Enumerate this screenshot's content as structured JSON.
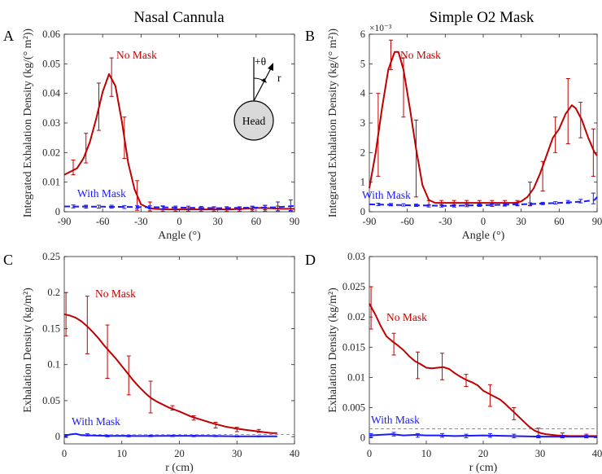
{
  "column_titles": [
    "Nasal Cannula",
    "Simple O2 Mask"
  ],
  "colors": {
    "no_mask": "#c00000",
    "with_mask": "#1a1aff",
    "axis": "#262626",
    "threshold": "#808080",
    "head_fill": "#d9d9d9"
  },
  "chart_data": [
    {
      "panel": "A",
      "type": "line",
      "xlabel": "Angle (°)",
      "ylabel": "Integrated Exhalation Density (kg/(° m²))",
      "xlim": [
        -90,
        90
      ],
      "ylim": [
        0,
        0.06
      ],
      "xticks": [
        -90,
        -60,
        -30,
        0,
        30,
        60,
        90
      ],
      "yticks": [
        0,
        0.01,
        0.02,
        0.03,
        0.04,
        0.05,
        0.06
      ],
      "ytick_labels": [
        "0",
        "0.01",
        "0.02",
        "0.03",
        "0.04",
        "0.05",
        "0.06"
      ],
      "grid": false,
      "inset": {
        "label": "Head",
        "angle_label": "+θ",
        "radius_label": "r"
      },
      "series": [
        {
          "name": "No Mask",
          "style": "solid",
          "x": [
            -90,
            -80,
            -75,
            -70,
            -65,
            -60,
            -55,
            -50,
            -45,
            -40,
            -35,
            -30,
            -25,
            -20,
            -10,
            0,
            10,
            20,
            30,
            40,
            50,
            60,
            70,
            80,
            90
          ],
          "y": [
            0.0125,
            0.0147,
            0.018,
            0.0235,
            0.0315,
            0.0405,
            0.0465,
            0.0425,
            0.0305,
            0.0165,
            0.0075,
            0.0025,
            0.0015,
            0.001,
            0.0008,
            0.0008,
            0.0008,
            0.0008,
            0.0008,
            0.0008,
            0.001,
            0.0013,
            0.0012,
            0.001,
            0.001
          ],
          "err_x": [
            -83,
            -73,
            -63,
            -53,
            -43,
            -33,
            -23,
            -13,
            -3,
            7,
            17,
            27,
            37,
            47,
            57,
            67,
            77,
            87
          ],
          "err_y": [
            0.015,
            0.0215,
            0.0355,
            0.0455,
            0.025,
            0.0055,
            0.0018,
            0.001,
            0.0008,
            0.0008,
            0.0008,
            0.0008,
            0.0008,
            0.0008,
            0.001,
            0.0012,
            0.0011,
            0.001
          ],
          "err_d": [
            0.0025,
            0.005,
            0.008,
            0.0065,
            0.007,
            0.005,
            0.0015,
            0.0008,
            0.0006,
            0.0006,
            0.0006,
            0.0006,
            0.0006,
            0.0006,
            0.0008,
            0.001,
            0.0008,
            0.0008
          ]
        },
        {
          "name": "With Mask",
          "style": "dashed",
          "x": [
            -90,
            -60,
            -30,
            0,
            30,
            60,
            75,
            85,
            90
          ],
          "y": [
            0.0018,
            0.0017,
            0.0016,
            0.0014,
            0.0012,
            0.0014,
            0.0015,
            0.0018,
            0.002
          ],
          "err_x": [
            -83,
            -73,
            -63,
            -53,
            -43,
            -33,
            -23,
            -13,
            -3,
            7,
            17,
            27,
            37,
            47,
            57,
            67,
            77,
            87
          ],
          "err_y": [
            0.0018,
            0.0017,
            0.0017,
            0.0017,
            0.0016,
            0.0016,
            0.0015,
            0.0015,
            0.0014,
            0.0014,
            0.0013,
            0.0012,
            0.0012,
            0.0012,
            0.0013,
            0.0014,
            0.0018,
            0.0022
          ],
          "err_d": [
            0.0005,
            0.0005,
            0.0005,
            0.0005,
            0.0005,
            0.0005,
            0.0005,
            0.0005,
            0.0005,
            0.0005,
            0.0005,
            0.0005,
            0.0005,
            0.0005,
            0.0006,
            0.0007,
            0.0015,
            0.0018
          ]
        }
      ]
    },
    {
      "panel": "B",
      "type": "line",
      "xlabel": "Angle (°)",
      "ylabel": "Integrated Exhalation Density (kg/(° m²))",
      "multiplier": "×10⁻³",
      "xlim": [
        -90,
        90
      ],
      "ylim": [
        0,
        0.006
      ],
      "xticks": [
        -90,
        -60,
        -30,
        0,
        30,
        60,
        90
      ],
      "yticks": [
        0,
        0.001,
        0.002,
        0.003,
        0.004,
        0.005,
        0.006
      ],
      "ytick_labels": [
        "0",
        "1",
        "2",
        "3",
        "4",
        "5",
        "6"
      ],
      "grid": false,
      "series": [
        {
          "name": "No Mask",
          "style": "solid",
          "x": [
            -90,
            -85,
            -80,
            -75,
            -70,
            -67,
            -63,
            -58,
            -53,
            -48,
            -43,
            -38,
            -33,
            -20,
            0,
            20,
            25,
            30,
            35,
            40,
            45,
            50,
            55,
            60,
            65,
            70,
            73,
            78,
            83,
            88,
            90
          ],
          "y": [
            0.0008,
            0.002,
            0.0035,
            0.0048,
            0.0054,
            0.0054,
            0.0048,
            0.0035,
            0.0021,
            0.0009,
            0.0004,
            0.0003,
            0.0003,
            0.0003,
            0.0003,
            0.0003,
            0.0003,
            0.00035,
            0.0005,
            0.0008,
            0.0013,
            0.0019,
            0.0025,
            0.0028,
            0.0033,
            0.0036,
            0.0035,
            0.0031,
            0.0025,
            0.002,
            0.0019
          ],
          "err_x": [
            -83,
            -73,
            -63,
            -53,
            -43,
            -33,
            -23,
            -13,
            -3,
            7,
            17,
            27,
            37,
            47,
            57,
            67,
            77,
            87
          ],
          "err_y": [
            0.0026,
            0.0053,
            0.0042,
            0.0018,
            0.0003,
            0.0003,
            0.0003,
            0.0003,
            0.0003,
            0.0003,
            0.0003,
            0.0003,
            0.0006,
            0.0012,
            0.0026,
            0.0034,
            0.0031,
            0.002
          ],
          "err_d": [
            0.0014,
            0.0005,
            0.001,
            0.0013,
            8e-05,
            8e-05,
            8e-05,
            8e-05,
            8e-05,
            8e-05,
            8e-05,
            8e-05,
            0.0004,
            0.0005,
            0.0006,
            0.0011,
            0.0006,
            0.0008
          ]
        },
        {
          "name": "With Mask",
          "style": "dashed",
          "x": [
            -90,
            -60,
            -30,
            0,
            30,
            60,
            80,
            88,
            90
          ],
          "y": [
            0.00025,
            0.00022,
            0.0002,
            0.00022,
            0.00025,
            0.0003,
            0.00035,
            0.0004,
            0.0005
          ],
          "err_x": [
            -83,
            -73,
            -63,
            -53,
            -43,
            -33,
            -23,
            -13,
            -3,
            7,
            17,
            27,
            37,
            47,
            57,
            67,
            77,
            87
          ],
          "err_y": [
            0.00025,
            0.00024,
            0.00023,
            0.00022,
            0.0002,
            0.0002,
            0.0002,
            0.00021,
            0.00022,
            0.00022,
            0.00023,
            0.00024,
            0.00026,
            0.00028,
            0.0003,
            0.00033,
            0.00036,
            0.00045
          ],
          "err_d": [
            4e-05,
            4e-05,
            4e-05,
            4e-05,
            4e-05,
            4e-05,
            4e-05,
            4e-05,
            4e-05,
            4e-05,
            4e-05,
            4e-05,
            4e-05,
            4e-05,
            4e-05,
            5e-05,
            6e-05,
            0.00018
          ]
        }
      ]
    },
    {
      "panel": "C",
      "type": "line",
      "xlabel": "r (cm)",
      "ylabel": "Exhalation Density (kg/m²)",
      "xlim": [
        0,
        40
      ],
      "ylim": [
        -0.01,
        0.25
      ],
      "xticks": [
        0,
        10,
        20,
        30,
        40
      ],
      "yticks": [
        0,
        0.05,
        0.1,
        0.15,
        0.2,
        0.25
      ],
      "ytick_labels": [
        "0",
        "0.05",
        "0.1",
        "0.15",
        "0.2",
        "0.25"
      ],
      "grid": false,
      "threshold": 0.003,
      "series": [
        {
          "name": "No Mask",
          "style": "solid",
          "x": [
            0,
            1,
            2,
            3,
            4,
            5,
            6,
            7,
            8,
            9,
            10,
            11,
            12,
            13,
            14,
            15,
            16,
            17,
            18,
            19,
            20,
            22,
            24,
            26,
            28,
            30,
            32,
            34,
            36,
            37
          ],
          "y": [
            0.17,
            0.168,
            0.165,
            0.16,
            0.153,
            0.145,
            0.136,
            0.126,
            0.117,
            0.108,
            0.098,
            0.088,
            0.078,
            0.069,
            0.061,
            0.054,
            0.049,
            0.045,
            0.041,
            0.038,
            0.035,
            0.028,
            0.023,
            0.018,
            0.014,
            0.011,
            0.009,
            0.007,
            0.005,
            0.005
          ],
          "err_x": [
            0.3,
            4,
            7.5,
            11.2,
            15,
            18.8,
            22.5,
            26.3,
            30,
            33.8
          ],
          "err_y": [
            0.17,
            0.155,
            0.118,
            0.085,
            0.055,
            0.04,
            0.026,
            0.016,
            0.01,
            0.008
          ],
          "err_d": [
            0.03,
            0.04,
            0.037,
            0.027,
            0.022,
            0.003,
            0.003,
            0.004,
            0.003,
            0.002
          ]
        },
        {
          "name": "With Mask",
          "style": "solid",
          "x": [
            0,
            1,
            2,
            3,
            5,
            8,
            10,
            13,
            16,
            20,
            25,
            30,
            35,
            37
          ],
          "y": [
            0.001,
            0.003,
            0.004,
            0.002,
            0.0015,
            0.001,
            0.0012,
            0.0008,
            0.001,
            0.0012,
            0.001,
            0.0005,
            0.0004,
            0.0004
          ],
          "err_x": [
            0.3,
            4,
            7.5,
            11.2,
            15,
            18.8,
            22.5,
            26.3,
            30,
            33.8
          ],
          "err_y": [
            0.001,
            0.0025,
            0.001,
            0.0008,
            0.001,
            0.0011,
            0.001,
            0.0008,
            0.0005,
            0.0004
          ],
          "err_d": [
            0.002,
            0.0015,
            0.0012,
            0.001,
            0.001,
            0.001,
            0.001,
            0.0008,
            0.0008,
            0.0006
          ]
        }
      ]
    },
    {
      "panel": "D",
      "type": "line",
      "xlabel": "r (cm)",
      "ylabel": "Exhalation Density (kg/m²)",
      "xlim": [
        0,
        40
      ],
      "ylim": [
        -0.001,
        0.03
      ],
      "xticks": [
        0,
        10,
        20,
        30,
        40
      ],
      "yticks": [
        0,
        0.005,
        0.01,
        0.015,
        0.02,
        0.025,
        0.03
      ],
      "ytick_labels": [
        "0",
        "0.005",
        "0.01",
        "0.015",
        "0.02",
        "0.025",
        "0.03"
      ],
      "grid": false,
      "threshold": 0.0015,
      "series": [
        {
          "name": "No Mask",
          "style": "solid",
          "x": [
            0,
            1,
            2,
            3,
            4,
            5,
            6,
            7,
            8,
            9,
            10,
            11,
            12,
            13,
            14,
            15,
            16,
            17,
            18,
            19,
            20,
            21,
            22,
            23,
            24,
            25,
            26,
            27,
            28,
            29,
            30,
            31,
            33,
            35,
            37,
            39,
            40
          ],
          "y": [
            0.0222,
            0.0205,
            0.0185,
            0.0168,
            0.016,
            0.0153,
            0.0145,
            0.0135,
            0.0127,
            0.0122,
            0.0116,
            0.0115,
            0.0116,
            0.0117,
            0.0114,
            0.0107,
            0.0101,
            0.0096,
            0.0092,
            0.0087,
            0.0078,
            0.0073,
            0.0068,
            0.0063,
            0.0055,
            0.0046,
            0.0037,
            0.0028,
            0.0019,
            0.0012,
            0.0008,
            0.0006,
            0.0004,
            0.0003,
            0.0003,
            0.0003,
            0.0003
          ],
          "err_x": [
            0.3,
            4.3,
            8.5,
            12.8,
            17,
            21.2,
            25.4,
            29.7,
            33.9,
            38.1
          ],
          "err_y": [
            0.0215,
            0.0155,
            0.012,
            0.0118,
            0.0095,
            0.007,
            0.004,
            0.0008,
            0.0004,
            0.0003
          ],
          "err_d": [
            0.0035,
            0.0018,
            0.0022,
            0.0022,
            0.001,
            0.0018,
            0.001,
            0.0008,
            0.0004,
            0.0003
          ]
        },
        {
          "name": "With Mask",
          "style": "solid",
          "x": [
            0,
            2,
            4,
            6,
            8,
            10,
            12,
            15,
            20,
            25,
            30,
            35,
            40
          ],
          "y": [
            0.0004,
            0.0005,
            0.0006,
            0.0004,
            0.0005,
            0.0004,
            0.0004,
            0.0003,
            0.0004,
            0.0003,
            0.0002,
            0.0002,
            0.0002
          ],
          "err_x": [
            0.3,
            4.3,
            8.5,
            12.8,
            17,
            21.2,
            25.4,
            29.7,
            33.9,
            38.1
          ],
          "err_y": [
            0.0004,
            0.0006,
            0.0004,
            0.0004,
            0.0003,
            0.0004,
            0.0003,
            0.0002,
            0.0002,
            0.0002
          ],
          "err_d": [
            0.0003,
            0.0003,
            0.0003,
            0.0003,
            0.0003,
            0.0003,
            0.0003,
            0.0002,
            0.0002,
            0.0002
          ]
        }
      ]
    }
  ]
}
